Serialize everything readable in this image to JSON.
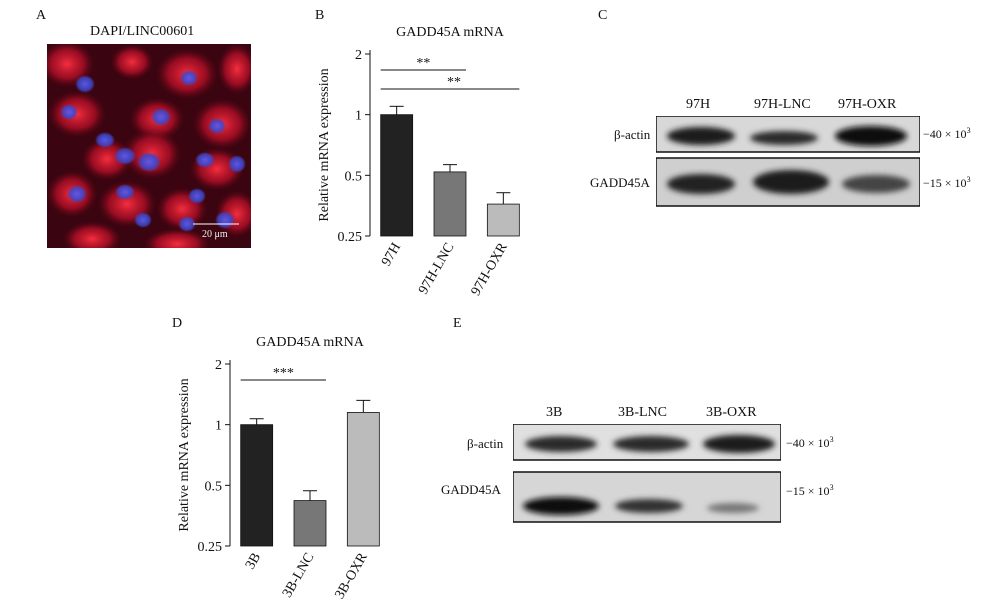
{
  "panels": {
    "A": {
      "letter": "A",
      "title": "DAPI/LINC00601",
      "scalebar": "20 μm"
    },
    "B": {
      "letter": "B"
    },
    "C": {
      "letter": "C",
      "lanes": [
        "97H",
        "97H-LNC",
        "97H-OXR"
      ],
      "rows": [
        "β-actin",
        "GADD45A"
      ],
      "markers": [
        "40",
        "15"
      ],
      "marker_prefix": "−",
      "marker_mult": "× 10",
      "marker_exp": "3"
    },
    "D": {
      "letter": "D"
    },
    "E": {
      "letter": "E",
      "lanes": [
        "3B",
        "3B-LNC",
        "3B-OXR"
      ],
      "rows": [
        "β-actin",
        "GADD45A"
      ],
      "markers": [
        "40",
        "15"
      ],
      "marker_prefix": "−",
      "marker_mult": "× 10",
      "marker_exp": "3"
    }
  },
  "colors": {
    "bar1": "#222222",
    "bar2": "#777777",
    "bar3": "#bbbbbb",
    "axis": "#111111",
    "fluor_bg": "#3a0410",
    "fluor_red": "#d8182c",
    "fluor_blue": "#3d46c8"
  },
  "chart_data": [
    {
      "type": "bar",
      "title": "GADD45A mRNA",
      "ylabel": "Relative mRNA expression",
      "yscale": "log2",
      "ylim": [
        0.25,
        2
      ],
      "yticks": [
        "0.25",
        "0.5",
        "1",
        "2"
      ],
      "categories": [
        "97H",
        "97H-LNC",
        "97H-OXR"
      ],
      "values": [
        1.0,
        0.52,
        0.36
      ],
      "error": [
        0.1,
        0.045,
        0.05
      ],
      "significance": [
        {
          "pair": [
            "97H",
            "97H-LNC"
          ],
          "label": "**"
        },
        {
          "pair": [
            "97H",
            "97H-OXR"
          ],
          "label": "**"
        }
      ]
    },
    {
      "type": "bar",
      "title": "GADD45A mRNA",
      "ylabel": "Relative mRNA expression",
      "yscale": "log2",
      "ylim": [
        0.25,
        2
      ],
      "yticks": [
        "0.25",
        "0.5",
        "1",
        "2"
      ],
      "categories": [
        "3B",
        "3B-LNC",
        "3B-OXR"
      ],
      "values": [
        1.0,
        0.42,
        1.15
      ],
      "error": [
        0.07,
        0.05,
        0.17
      ],
      "significance": [
        {
          "pair": [
            "3B",
            "3B-LNC"
          ],
          "label": "***"
        }
      ]
    }
  ]
}
